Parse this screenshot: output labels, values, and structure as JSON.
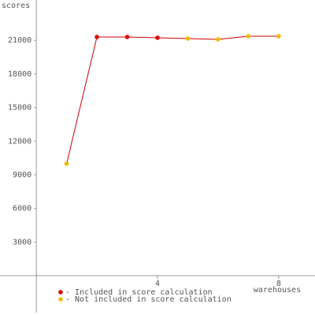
{
  "chart_data": {
    "type": "line",
    "y_label": "scores",
    "x_label": "warehouses",
    "x": [
      1,
      2,
      3,
      4,
      5,
      6,
      7,
      8
    ],
    "series": [
      {
        "name": "- Included in score calculation",
        "color": "#dd0000",
        "values": [
          null,
          21300,
          21300,
          21230,
          null,
          null,
          null,
          null
        ]
      },
      {
        "name": "- Not included in score calculation",
        "color": "#f5b800",
        "values": [
          10000,
          null,
          null,
          null,
          21160,
          21090,
          21370,
          21370
        ]
      }
    ],
    "line_color": "#cc0000",
    "xlim": [
      -1.2,
      9.2
    ],
    "ylim": [
      -3300,
      24600
    ],
    "xticks": [
      4,
      8
    ],
    "yticks": [
      3000,
      6000,
      9000,
      12000,
      15000,
      18000,
      21000
    ],
    "grid": false
  }
}
